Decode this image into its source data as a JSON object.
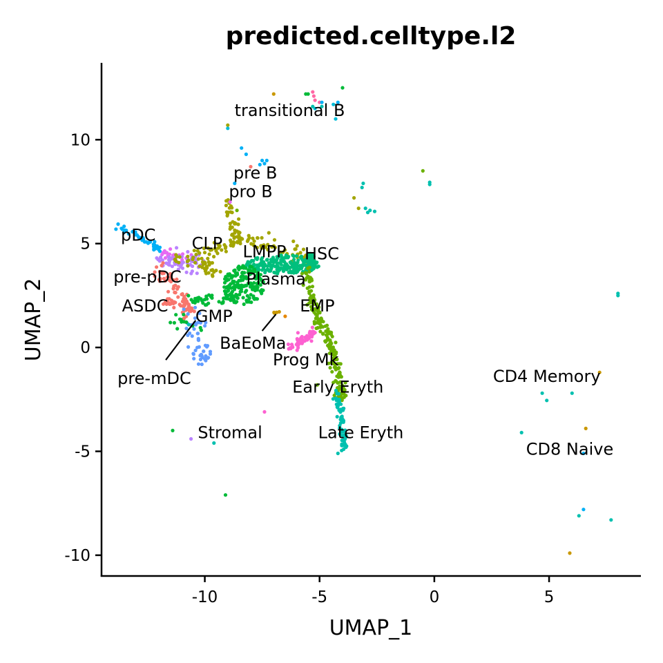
{
  "chart_data": {
    "type": "scatter",
    "title": "predicted.celltype.l2",
    "xlabel": "UMAP_1",
    "ylabel": "UMAP_2",
    "xlim": [
      -14.5,
      9
    ],
    "ylim": [
      -11,
      13.7
    ],
    "x_ticks": [
      {
        "value": -10,
        "label": "-10"
      },
      {
        "value": -5,
        "label": "-5"
      },
      {
        "value": 0,
        "label": "0"
      },
      {
        "value": 5,
        "label": "5"
      }
    ],
    "y_ticks": [
      {
        "value": -10,
        "label": "-10"
      },
      {
        "value": -5,
        "label": "-5"
      },
      {
        "value": 0,
        "label": "0"
      },
      {
        "value": 5,
        "label": "5"
      },
      {
        "value": 10,
        "label": "10"
      }
    ],
    "grid": false,
    "legend": "none",
    "point_colors": [
      "#F8766D",
      "#E58700",
      "#C99800",
      "#A3A500",
      "#6BB100",
      "#00BA38",
      "#00BF7D",
      "#00C0AF",
      "#00BCD8",
      "#00B0F6",
      "#619CFF",
      "#B983FF",
      "#E76BF3",
      "#FD61D1",
      "#FF67A4"
    ],
    "label_color": "#000000",
    "cell_labels": [
      {
        "name": "transitional B",
        "x": -6.3,
        "y": 11.4,
        "anchor": "middle"
      },
      {
        "name": "pre B",
        "x": -7.8,
        "y": 8.4,
        "anchor": "middle"
      },
      {
        "name": "pro B",
        "x": -8.0,
        "y": 7.5,
        "anchor": "middle"
      },
      {
        "name": "pDC",
        "x": -12.9,
        "y": 5.4,
        "anchor": "middle"
      },
      {
        "name": "CLP",
        "x": -9.9,
        "y": 5.0,
        "anchor": "middle"
      },
      {
        "name": "LMPP",
        "x": -7.4,
        "y": 4.6,
        "anchor": "middle"
      },
      {
        "name": "HSC",
        "x": -4.9,
        "y": 4.5,
        "anchor": "middle"
      },
      {
        "name": "pre-pDC",
        "x": -12.5,
        "y": 3.4,
        "anchor": "middle"
      },
      {
        "name": "Plasma",
        "x": -6.9,
        "y": 3.3,
        "anchor": "middle"
      },
      {
        "name": "ASDC",
        "x": -12.6,
        "y": 2.0,
        "anchor": "middle"
      },
      {
        "name": "EMP",
        "x": -5.1,
        "y": 2.0,
        "anchor": "middle"
      },
      {
        "name": "GMP",
        "x": -9.6,
        "y": 1.5,
        "anchor": "middle"
      },
      {
        "name": "BaEoMa",
        "x": -7.9,
        "y": 0.2,
        "anchor": "middle"
      },
      {
        "name": "Prog Mk",
        "x": -5.6,
        "y": -0.6,
        "anchor": "middle"
      },
      {
        "name": "pre-mDC",
        "x": -12.2,
        "y": -1.5,
        "anchor": "middle"
      },
      {
        "name": "CD4 Memory",
        "x": 4.9,
        "y": -1.4,
        "anchor": "middle"
      },
      {
        "name": "Early Eryth",
        "x": -4.2,
        "y": -1.9,
        "anchor": "middle"
      },
      {
        "name": "Stromal",
        "x": -8.9,
        "y": -4.1,
        "anchor": "middle"
      },
      {
        "name": "Late Eryth",
        "x": -3.2,
        "y": -4.1,
        "anchor": "middle"
      },
      {
        "name": "CD8 Naive",
        "x": 5.9,
        "y": -4.9,
        "anchor": "middle"
      }
    ],
    "callout_lines": [
      {
        "x1": -11.7,
        "y1": -0.6,
        "x2": -10.4,
        "y2": 1.3
      },
      {
        "x1": -7.5,
        "y1": 0.8,
        "x2": -6.9,
        "y2": 1.6
      }
    ],
    "clusters": [
      {
        "kind": "path",
        "color": "#00B0F6",
        "n": 40,
        "spread": 0.08,
        "pts": [
          [
            -13.9,
            5.9
          ],
          [
            -12.8,
            5.3
          ],
          [
            -11.9,
            4.7
          ]
        ]
      },
      {
        "kind": "path",
        "color": "#E76BF3",
        "n": 25,
        "spread": 0.12,
        "pts": [
          [
            -11.9,
            4.6
          ],
          [
            -10.8,
            4.2
          ]
        ]
      },
      {
        "kind": "path",
        "color": "#B983FF",
        "n": 55,
        "spread": 0.25,
        "pts": [
          [
            -12,
            4.3
          ],
          [
            -11,
            4.0
          ],
          [
            -10.2,
            4.2
          ]
        ]
      },
      {
        "kind": "path",
        "color": "#F8766D",
        "n": 70,
        "spread": 0.15,
        "pts": [
          [
            -12,
            3.8
          ],
          [
            -11.4,
            3.0
          ],
          [
            -10.9,
            2.3
          ],
          [
            -10.6,
            1.7
          ]
        ]
      },
      {
        "kind": "path",
        "color": "#F8766D",
        "n": 20,
        "spread": 0.1,
        "pts": [
          [
            -11.8,
            2.2
          ],
          [
            -11.2,
            2.1
          ]
        ]
      },
      {
        "kind": "path",
        "color": "#619CFF",
        "n": 50,
        "spread": 0.18,
        "pts": [
          [
            -10.6,
            1.7
          ],
          [
            -10.3,
            0.6
          ],
          [
            -10.1,
            -0.3
          ],
          [
            -10.1,
            -0.7
          ]
        ]
      },
      {
        "kind": "path",
        "color": "#A3A500",
        "n": 110,
        "spread": 0.18,
        "pts": [
          [
            -11.5,
            4.2
          ],
          [
            -10.5,
            4.4
          ],
          [
            -9.5,
            4.7
          ],
          [
            -8.8,
            5.0
          ],
          [
            -8.3,
            5.3
          ],
          [
            -7.5,
            5.0
          ],
          [
            -6.5,
            4.6
          ],
          [
            -5.5,
            4.4
          ]
        ]
      },
      {
        "kind": "path",
        "color": "#A3A500",
        "n": 25,
        "spread": 0.15,
        "pts": [
          [
            -10.2,
            4.2
          ],
          [
            -9.6,
            3.6
          ]
        ]
      },
      {
        "kind": "path",
        "color": "#A3A500",
        "n": 35,
        "spread": 0.12,
        "pts": [
          [
            -8.6,
            5.3
          ],
          [
            -8.8,
            5.9
          ],
          [
            -8.9,
            6.6
          ],
          [
            -9.0,
            7.1
          ]
        ]
      },
      {
        "kind": "blob",
        "color": "#00BF7D",
        "n": 220,
        "cx": -6.6,
        "cy": 4.0,
        "rx": 1.6,
        "ry": 0.45
      },
      {
        "kind": "blob",
        "color": "#00BF7D",
        "n": 60,
        "cx": -5.4,
        "cy": 4.1,
        "rx": 0.2,
        "ry": 0.45
      },
      {
        "kind": "blob",
        "color": "#00BA38",
        "n": 170,
        "cx": -8.3,
        "cy": 3.0,
        "rx": 0.9,
        "ry": 0.95
      },
      {
        "kind": "path",
        "color": "#00BA38",
        "n": 40,
        "spread": 0.12,
        "pts": [
          [
            -10.8,
            2.2
          ],
          [
            -9.8,
            2.3
          ],
          [
            -8.8,
            2.3
          ]
        ]
      },
      {
        "kind": "path",
        "color": "#00BA38",
        "n": 12,
        "spread": 0.15,
        "pts": [
          [
            -11.2,
            1.5
          ],
          [
            -10.4,
            1.0
          ]
        ]
      },
      {
        "kind": "path",
        "color": "#6BB100",
        "n": 190,
        "spread": 0.12,
        "pts": [
          [
            -5.5,
            3.9
          ],
          [
            -5.5,
            2.8
          ],
          [
            -5.2,
            1.8
          ],
          [
            -5.0,
            1.1
          ],
          [
            -4.6,
            0.4
          ],
          [
            -4.4,
            -0.4
          ],
          [
            -4.2,
            -1.2
          ],
          [
            -4.1,
            -1.9
          ],
          [
            -4.0,
            -2.5
          ]
        ]
      },
      {
        "kind": "path",
        "color": "#00C0AF",
        "n": 70,
        "spread": 0.08,
        "pts": [
          [
            -4.2,
            -2.2
          ],
          [
            -4.1,
            -3.0
          ],
          [
            -4.0,
            -3.8
          ],
          [
            -3.95,
            -4.5
          ],
          [
            -3.95,
            -4.8
          ]
        ]
      },
      {
        "kind": "path",
        "color": "#FD61D1",
        "n": 55,
        "spread": 0.12,
        "pts": [
          [
            -6.3,
            0.0
          ],
          [
            -5.8,
            0.3
          ],
          [
            -5.3,
            0.7
          ]
        ]
      },
      {
        "kind": "blob",
        "color": "#C99800",
        "n": 5,
        "cx": -6.9,
        "cy": 1.7,
        "rx": 0.15,
        "ry": 0.1
      },
      {
        "kind": "points",
        "pts": [
          [
            -7.0,
            12.2,
            "#C99800"
          ],
          [
            -5.5,
            12.2,
            "#00BA38"
          ],
          [
            -5.6,
            12.2,
            "#00BA38"
          ],
          [
            -5.3,
            12.3,
            "#FF67A4"
          ],
          [
            -5.25,
            12.1,
            "#FF67A4"
          ],
          [
            -5.2,
            11.9,
            "#FF67A4"
          ],
          [
            -5.0,
            11.8,
            "#FF67A4"
          ],
          [
            -4.9,
            11.8,
            "#00B0F6"
          ],
          [
            -5.2,
            11.5,
            "#00BCD8"
          ],
          [
            -4.9,
            11.6,
            "#00C0AF"
          ],
          [
            -4.0,
            12.5,
            "#00BA38"
          ],
          [
            -4.2,
            11.8,
            "#00B0F6"
          ],
          [
            -4.4,
            11.7,
            "#00BCD8"
          ],
          [
            -4.3,
            11.0,
            "#00BCD8"
          ],
          [
            -5.3,
            11.6,
            "#00C0AF"
          ],
          [
            -9.0,
            10.7,
            "#A3A500"
          ],
          [
            -9.0,
            10.55,
            "#00BCD8"
          ],
          [
            -8.4,
            9.6,
            "#00B0F6"
          ],
          [
            -8.2,
            9.3,
            "#00B0F6"
          ],
          [
            -7.5,
            9.0,
            "#00B0F6"
          ],
          [
            -7.3,
            9.0,
            "#00B0F6"
          ],
          [
            -7.4,
            8.85,
            "#00B0F6"
          ],
          [
            -7.6,
            8.8,
            "#00B0F6"
          ],
          [
            -8.0,
            8.7,
            "#F8766D"
          ],
          [
            -8.7,
            7.9,
            "#00B0F6"
          ],
          [
            -8.9,
            7.0,
            "#E76BF3"
          ],
          [
            -8.6,
            6.6,
            "#6BB100"
          ],
          [
            -3.1,
            7.9,
            "#00C0AF"
          ],
          [
            -3.15,
            7.7,
            "#00C0AF"
          ],
          [
            -3.5,
            7.2,
            "#A3A500"
          ],
          [
            -3.3,
            6.7,
            "#A3A500"
          ],
          [
            -3.0,
            6.7,
            "#00C0AF"
          ],
          [
            -2.8,
            6.6,
            "#00C0AF"
          ],
          [
            -2.6,
            6.55,
            "#00C0AF"
          ],
          [
            -2.9,
            6.5,
            "#00C0AF"
          ],
          [
            -0.5,
            8.5,
            "#6BB100"
          ],
          [
            -0.2,
            7.95,
            "#00C0AF"
          ],
          [
            -0.2,
            7.85,
            "#00C0AF"
          ],
          [
            8.0,
            2.6,
            "#00C0AF"
          ],
          [
            8.0,
            2.5,
            "#00C0AF"
          ],
          [
            7.2,
            -1.2,
            "#C99800"
          ],
          [
            4.7,
            -2.2,
            "#00C0AF"
          ],
          [
            4.9,
            -2.55,
            "#00C0AF"
          ],
          [
            6.0,
            -2.2,
            "#00C0AF"
          ],
          [
            6.6,
            -3.9,
            "#C99800"
          ],
          [
            3.8,
            -4.1,
            "#00C0AF"
          ],
          [
            6.5,
            -5.1,
            "#00B0F6"
          ],
          [
            6.5,
            -7.8,
            "#00B0F6"
          ],
          [
            6.3,
            -8.1,
            "#00C0AF"
          ],
          [
            7.7,
            -8.3,
            "#00C0AF"
          ],
          [
            5.9,
            -9.9,
            "#C99800"
          ],
          [
            -11.4,
            -4.0,
            "#00BA38"
          ],
          [
            -10.6,
            -4.4,
            "#B983FF"
          ],
          [
            -9.6,
            -4.6,
            "#00C0AF"
          ],
          [
            -9.1,
            -7.1,
            "#00BA38"
          ],
          [
            -7.4,
            -3.1,
            "#FD61D1"
          ],
          [
            -4.2,
            -5.1,
            "#00C0AF"
          ],
          [
            -3.95,
            -4.9,
            "#00C0AF"
          ],
          [
            -5.1,
            -1.8,
            "#6BB100"
          ],
          [
            -6.5,
            1.5,
            "#E58700"
          ],
          [
            -11.5,
            1.2,
            "#00BA38"
          ],
          [
            -11.2,
            0.9,
            "#00BA38"
          ],
          [
            -10.9,
            1.4,
            "#F8766D"
          ],
          [
            -10.7,
            1.1,
            "#00C0AF"
          ]
        ]
      }
    ]
  }
}
